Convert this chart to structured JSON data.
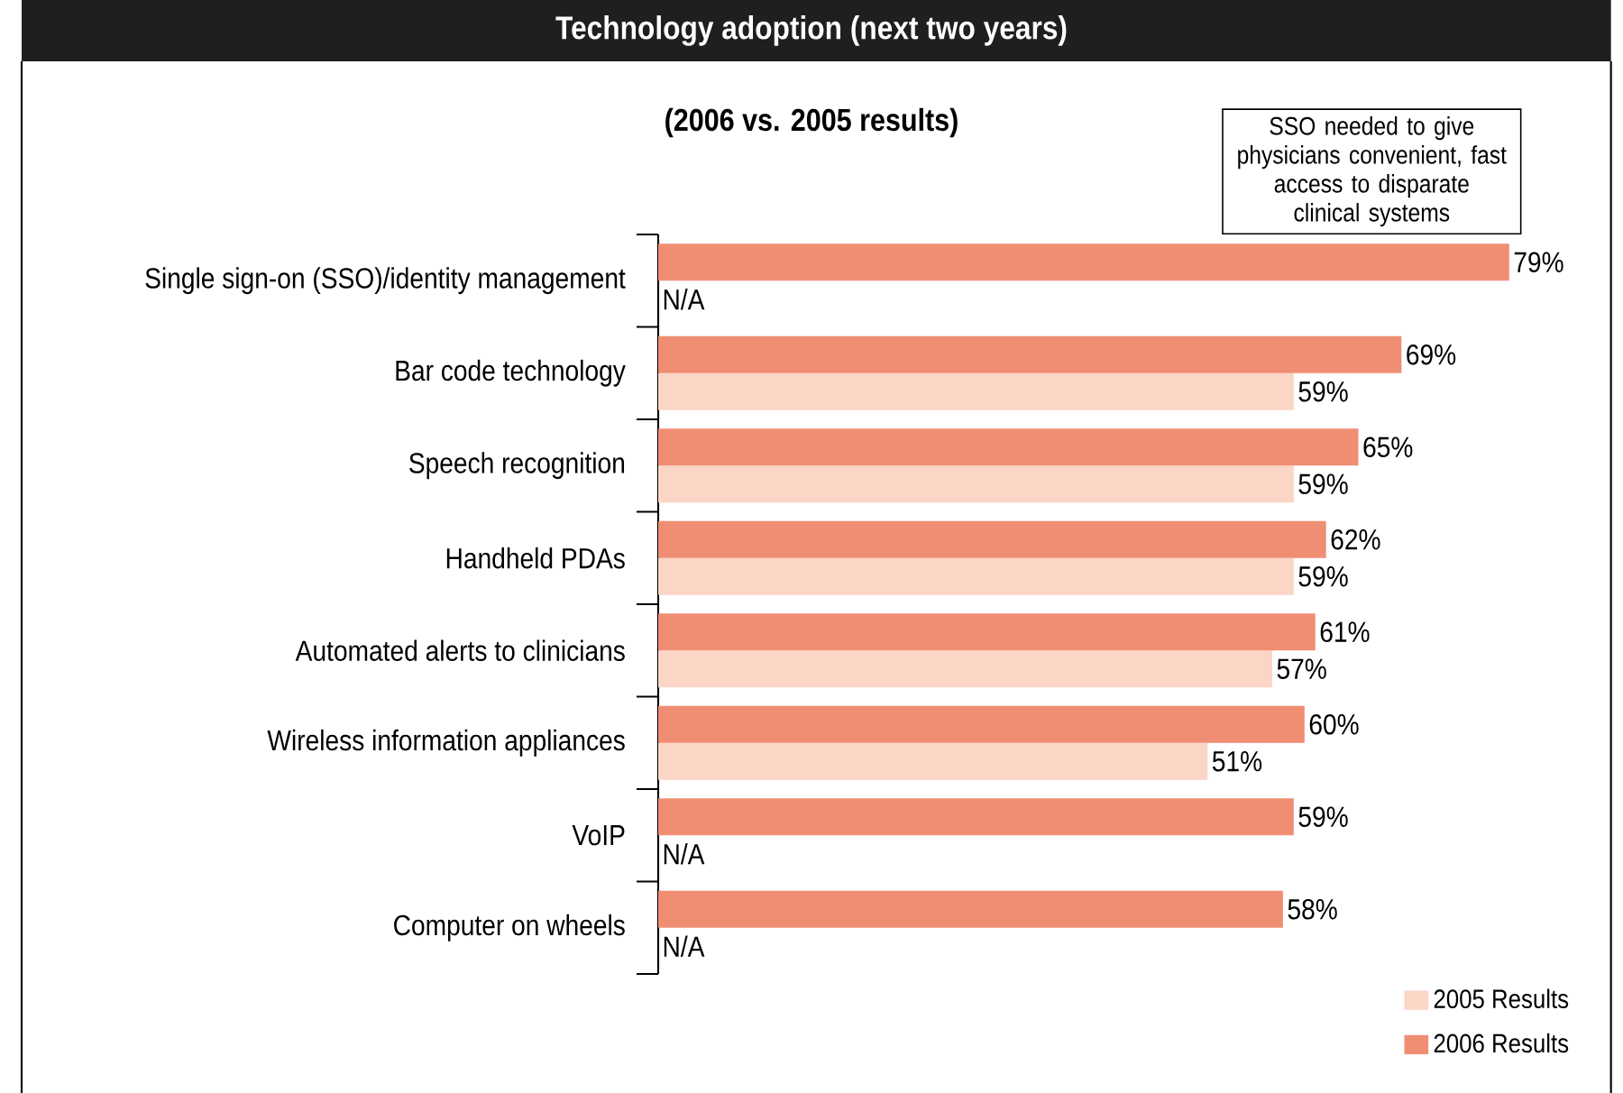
{
  "chart_data": {
    "type": "bar",
    "orientation": "horizontal",
    "title": "Technology adoption (next two years)",
    "subtitle": "(2006 vs. 2005 results)",
    "categories": [
      "Single sign-on (SSO)/identity management",
      "Bar code technology",
      "Speech recognition",
      "Handheld PDAs",
      "Automated alerts to clinicians",
      "Wireless information appliances",
      "VoIP",
      "Computer on wheels"
    ],
    "series": [
      {
        "name": "2005 Results",
        "color": "#fbd5c6",
        "values": [
          null,
          59,
          59,
          59,
          57,
          51,
          null,
          null
        ],
        "value_labels": [
          "N/A",
          "59%",
          "59%",
          "59%",
          "57%",
          "51%",
          "N/A",
          "N/A"
        ]
      },
      {
        "name": "2006 Results",
        "color": "#f08e74",
        "values": [
          79,
          69,
          65,
          62,
          61,
          60,
          59,
          58
        ],
        "value_labels": [
          "79%",
          "69%",
          "65%",
          "62%",
          "61%",
          "60%",
          "59%",
          "58%"
        ]
      }
    ],
    "tick_labels": "y",
    "legend": "bottom right",
    "annotations": [
      "SSO needed to give physicians convenient, fast access to disparate clinical systems"
    ]
  }
}
